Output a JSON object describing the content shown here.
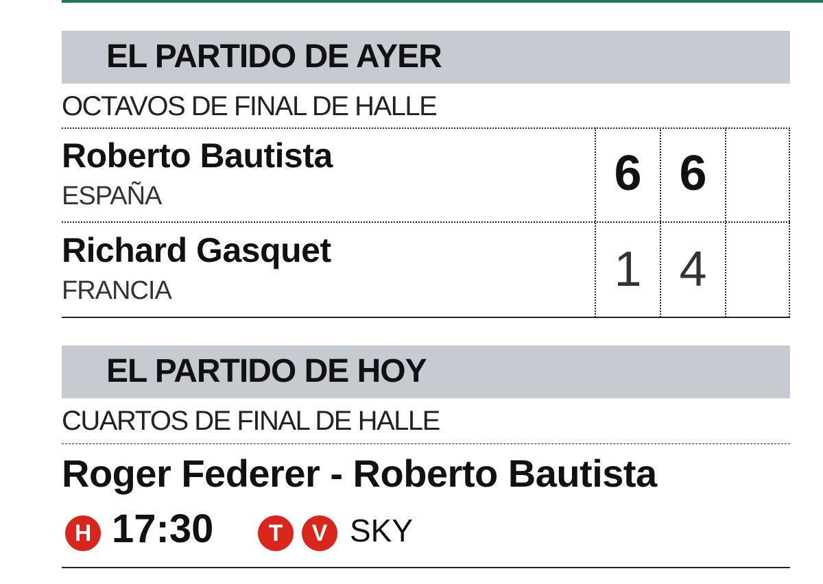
{
  "colors": {
    "accent_green": "#1f7a4f",
    "header_bar": "#c5cbd0",
    "badge_red": "#d9261c"
  },
  "yesterday": {
    "heading": "EL PARTIDO DE AYER",
    "round": "OCTAVOS DE FINAL DE HALLE",
    "players": [
      {
        "name": "Roberto Bautista",
        "country": "ESPAÑA",
        "sets": [
          "6",
          "6",
          ""
        ],
        "winner": true
      },
      {
        "name": "Richard Gasquet",
        "country": "FRANCIA",
        "sets": [
          "1",
          "4",
          ""
        ],
        "winner": false
      }
    ]
  },
  "today": {
    "heading": "EL PARTIDO DE HOY",
    "round": "CUARTOS DE FINAL DE HALLE",
    "match": "Roger Federer - Roberto Bautista",
    "hour_badge": "H",
    "time": "17:30",
    "tv_badges": [
      "T",
      "V"
    ],
    "channel": "SKY"
  }
}
